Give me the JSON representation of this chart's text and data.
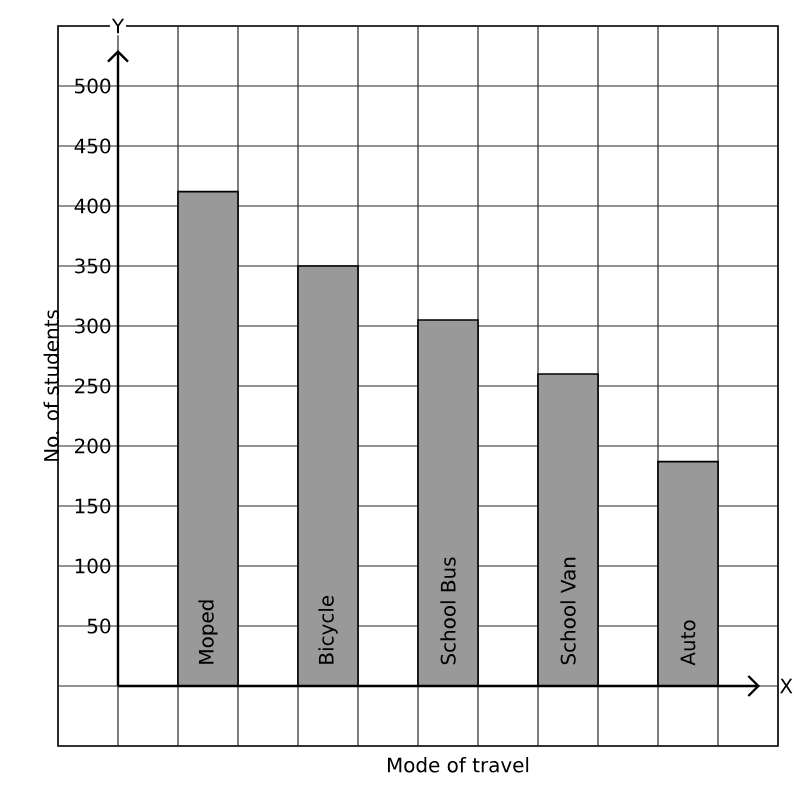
{
  "chart_data": {
    "type": "bar",
    "xlabel": "Mode of travel",
    "ylabel": "No. of students",
    "categories": [
      "Moped",
      "Bicycle",
      "School Bus",
      "School Van",
      "Auto"
    ],
    "values": [
      412,
      350,
      305,
      260,
      187
    ],
    "color": "#999999",
    "ylim": [
      -50,
      550
    ],
    "yticks": [
      50,
      100,
      150,
      200,
      250,
      300,
      350,
      400,
      450,
      500
    ],
    "grid": true,
    "annotations": [
      "Y",
      "X"
    ]
  }
}
